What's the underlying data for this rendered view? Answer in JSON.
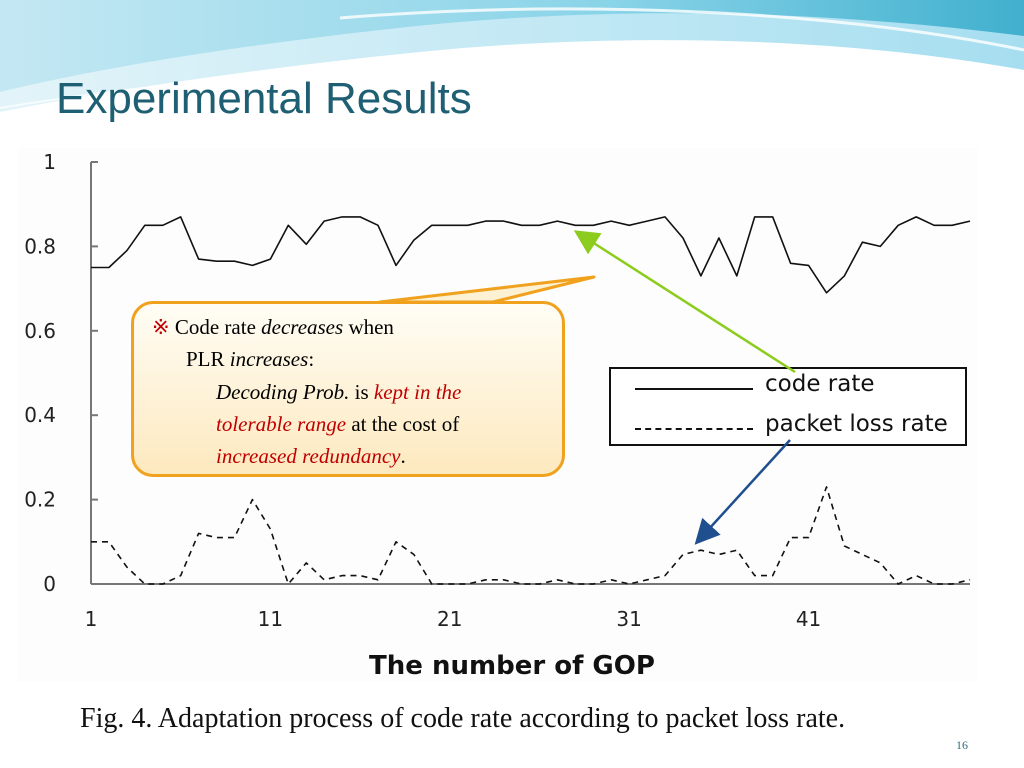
{
  "slide": {
    "title": "Experimental Results",
    "caption": "Fig. 4. Adaptation process of code rate according to packet loss rate.",
    "page_number": "16"
  },
  "callout": {
    "marker": "※",
    "line1_a": "Code rate ",
    "line1_b": "decreases",
    "line1_c": " when",
    "line2_a": "PLR ",
    "line2_b": "increases",
    "line2_c": ":",
    "line3_a": "Decoding Prob.",
    "line3_b": " is ",
    "line3_c": "kept in the",
    "line4_a": "tolerable range",
    "line4_b": " at the cost of",
    "line5_a": "increased redundancy",
    "line5_b": "."
  },
  "colors": {
    "title": "#1f5f73",
    "callout_border": "#f0a11d",
    "highlight_text": "#c00000",
    "arrow_code_rate": "#8ccc1e",
    "arrow_plr": "#1f4f8f"
  },
  "chart_data": {
    "type": "line",
    "xlabel": "The number of GOP",
    "ylabel": "",
    "xlim": [
      1,
      50
    ],
    "ylim": [
      0,
      1
    ],
    "xticks": [
      "1",
      "11",
      "21",
      "31",
      "41"
    ],
    "yticks": [
      "0",
      "0.2",
      "0.4",
      "0.6",
      "0.8",
      "1"
    ],
    "grid": false,
    "legend_position": "right",
    "series": [
      {
        "name": "code rate",
        "style": "solid",
        "x": [
          1,
          2,
          3,
          4,
          5,
          6,
          7,
          8,
          9,
          10,
          11,
          12,
          13,
          14,
          15,
          16,
          17,
          18,
          19,
          20,
          21,
          22,
          23,
          24,
          25,
          26,
          27,
          28,
          29,
          30,
          31,
          32,
          33,
          34,
          35,
          36,
          37,
          38,
          39,
          40,
          41,
          42,
          43,
          44,
          45,
          46,
          47,
          48,
          49,
          50
        ],
        "values": [
          0.75,
          0.75,
          0.79,
          0.85,
          0.85,
          0.87,
          0.77,
          0.765,
          0.765,
          0.755,
          0.77,
          0.85,
          0.805,
          0.86,
          0.87,
          0.87,
          0.85,
          0.755,
          0.815,
          0.85,
          0.85,
          0.85,
          0.86,
          0.86,
          0.85,
          0.85,
          0.86,
          0.85,
          0.85,
          0.86,
          0.85,
          0.86,
          0.87,
          0.82,
          0.73,
          0.82,
          0.73,
          0.87,
          0.87,
          0.76,
          0.755,
          0.69,
          0.73,
          0.81,
          0.8,
          0.85,
          0.87,
          0.85,
          0.85,
          0.86
        ]
      },
      {
        "name": "packet loss rate",
        "style": "dashed",
        "x": [
          1,
          2,
          3,
          4,
          5,
          6,
          7,
          8,
          9,
          10,
          11,
          12,
          13,
          14,
          15,
          16,
          17,
          18,
          19,
          20,
          21,
          22,
          23,
          24,
          25,
          26,
          27,
          28,
          29,
          30,
          31,
          32,
          33,
          34,
          35,
          36,
          37,
          38,
          39,
          40,
          41,
          42,
          43,
          44,
          45,
          46,
          47,
          48,
          49,
          50
        ],
        "values": [
          0.1,
          0.1,
          0.04,
          0.0,
          0.0,
          0.02,
          0.12,
          0.11,
          0.11,
          0.2,
          0.13,
          0.0,
          0.05,
          0.01,
          0.02,
          0.02,
          0.01,
          0.1,
          0.07,
          0.0,
          0.0,
          0.0,
          0.01,
          0.01,
          0.0,
          0.0,
          0.01,
          0.0,
          0.0,
          0.01,
          0.0,
          0.01,
          0.02,
          0.07,
          0.08,
          0.07,
          0.08,
          0.02,
          0.02,
          0.11,
          0.11,
          0.23,
          0.09,
          0.07,
          0.05,
          0.0,
          0.02,
          0.0,
          0.0,
          0.01
        ]
      }
    ]
  }
}
